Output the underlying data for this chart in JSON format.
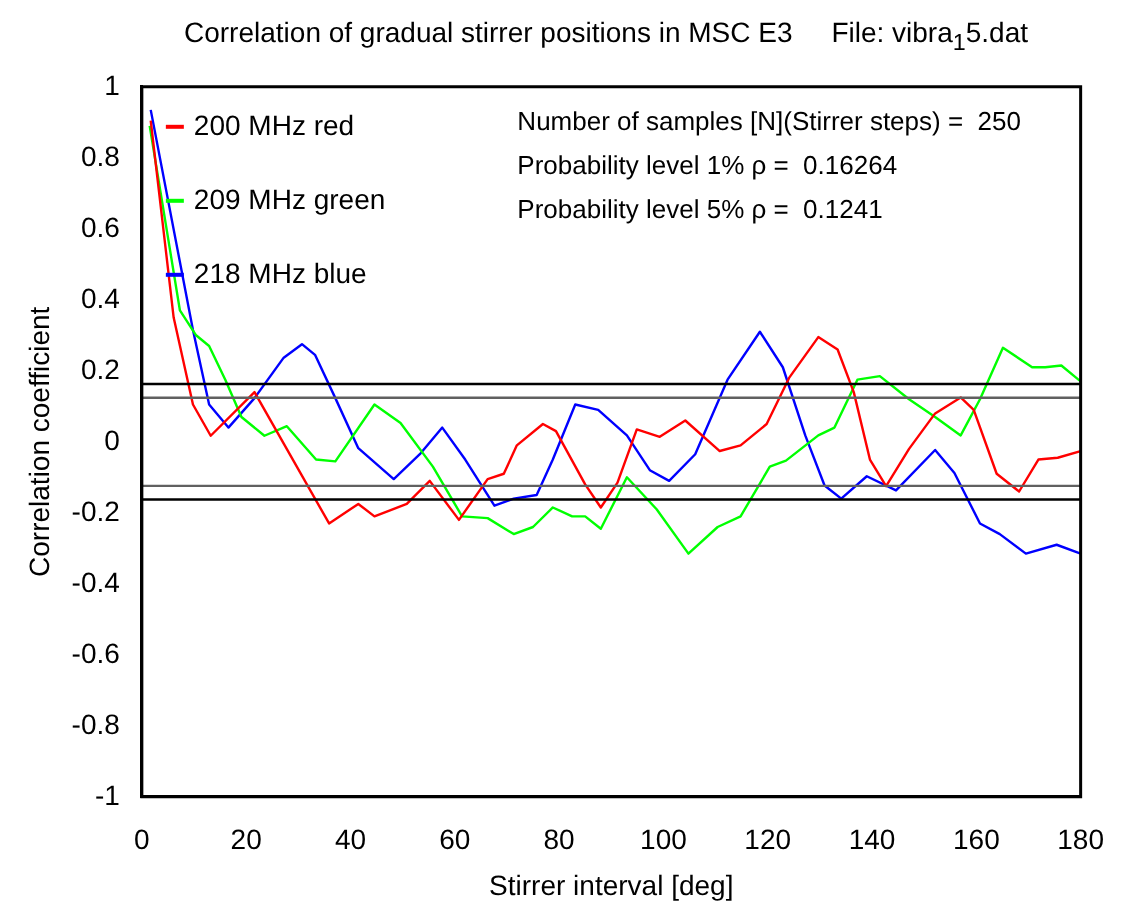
{
  "chart_data": {
    "type": "line",
    "title": "Correlation of gradual stirrer positions in MSC E3     File: vibra$_{1}$5.dat",
    "xlabel": "Stirrer interval [deg]",
    "ylabel": "Correlation coefficient",
    "xlim": [
      0,
      180
    ],
    "xticks": [
      0,
      20,
      40,
      60,
      80,
      100,
      120,
      140,
      160,
      180
    ],
    "ylim": [
      -1,
      1
    ],
    "yticks": [
      -1,
      -0.8,
      -0.6,
      -0.4,
      -0.2,
      0,
      0.2,
      0.4,
      0.6,
      0.8,
      1
    ],
    "grid": false,
    "legend": "top left",
    "annotations": [
      "Number of samples [N](Stirrer steps) =  250",
      "Probability level 1% ρ =  0.16264",
      "Probability level 5% ρ =  0.1241"
    ],
    "ref_lines": [
      {
        "axis": "y",
        "value": 0.16264,
        "color": "#000000"
      },
      {
        "axis": "y",
        "value": 0.1241,
        "color": "#606060"
      },
      {
        "axis": "y",
        "value": -0.1241,
        "color": "#606060"
      },
      {
        "axis": "y",
        "value": -0.16264,
        "color": "#000000"
      }
    ],
    "series": [
      {
        "name": "200 MHz red",
        "color": "#ff0000",
        "x": [
          1.7,
          6.1,
          9.8,
          13.2,
          21.6,
          35.9,
          41.5,
          44.6,
          50.8,
          55.2,
          60.8,
          66.3,
          69.4,
          71.9,
          76.9,
          79.4,
          85,
          88,
          91.2,
          94.9,
          99.3,
          104.2,
          110.8,
          114.8,
          119.8,
          124.1,
          129.7,
          133.4,
          136.5,
          139.6,
          142.7,
          147.1,
          152.1,
          157,
          159.5,
          163.9,
          168.2,
          171.9,
          175.6,
          180
        ],
        "values": [
          0.905,
          0.35,
          0.105,
          0.017,
          0.14,
          -0.23,
          -0.175,
          -0.21,
          -0.175,
          -0.11,
          -0.22,
          -0.105,
          -0.09,
          -0.01,
          0.05,
          0.03,
          -0.12,
          -0.185,
          -0.115,
          0.035,
          0.014,
          0.06,
          -0.026,
          -0.01,
          0.05,
          0.18,
          0.295,
          0.26,
          0.14,
          -0.05,
          -0.125,
          -0.02,
          0.08,
          0.125,
          0.09,
          -0.09,
          -0.14,
          -0.05,
          -0.045,
          -0.026
        ]
      },
      {
        "name": "209 MHz green",
        "color": "#00ff00",
        "x": [
          1.5,
          7.3,
          10.4,
          12.9,
          16,
          19.1,
          23.5,
          27.8,
          33.4,
          37.1,
          44.6,
          49.6,
          55.8,
          61.4,
          66.3,
          71.3,
          75,
          78.8,
          82.5,
          85,
          88,
          93,
          98.7,
          104.8,
          110.4,
          114.8,
          120.4,
          123.5,
          129.7,
          132.8,
          137.2,
          141.5,
          147.1,
          152.1,
          157,
          160.7,
          165.1,
          170.7,
          173.2,
          176.3,
          180
        ],
        "values": [
          0.89,
          0.37,
          0.3,
          0.27,
          0.175,
          0.07,
          0.017,
          0.044,
          -0.05,
          -0.055,
          0.105,
          0.053,
          -0.07,
          -0.21,
          -0.215,
          -0.26,
          -0.24,
          -0.185,
          -0.21,
          -0.21,
          -0.245,
          -0.1,
          -0.19,
          -0.315,
          -0.24,
          -0.21,
          -0.07,
          -0.053,
          0.018,
          0.04,
          0.175,
          0.185,
          0.12,
          0.07,
          0.018,
          0.12,
          0.265,
          0.21,
          0.21,
          0.215,
          0.17
        ]
      },
      {
        "name": "218 MHz blue",
        "color": "#0000ff",
        "x": [
          1.7,
          9.8,
          12.9,
          16.6,
          21.6,
          27.2,
          30.7,
          33.2,
          37.1,
          41.5,
          48.3,
          53.3,
          57.6,
          62,
          67.6,
          71.3,
          75.7,
          78.8,
          83.1,
          87.5,
          93,
          97.4,
          101.1,
          106.1,
          112.3,
          118.5,
          122.9,
          127.2,
          130.9,
          134.1,
          139,
          144.6,
          152.1,
          155.8,
          160.7,
          164.5,
          169.5,
          175.4,
          180
        ],
        "values": [
          0.935,
          0.315,
          0.105,
          0.04,
          0.123,
          0.237,
          0.275,
          0.245,
          0.123,
          -0.018,
          -0.105,
          -0.035,
          0.04,
          -0.05,
          -0.18,
          -0.16,
          -0.15,
          -0.05,
          0.105,
          0.09,
          0.018,
          -0.08,
          -0.11,
          -0.035,
          0.175,
          0.31,
          0.21,
          0.018,
          -0.123,
          -0.16,
          -0.097,
          -0.137,
          -0.023,
          -0.088,
          -0.23,
          -0.26,
          -0.315,
          -0.29,
          -0.315
        ]
      }
    ]
  }
}
